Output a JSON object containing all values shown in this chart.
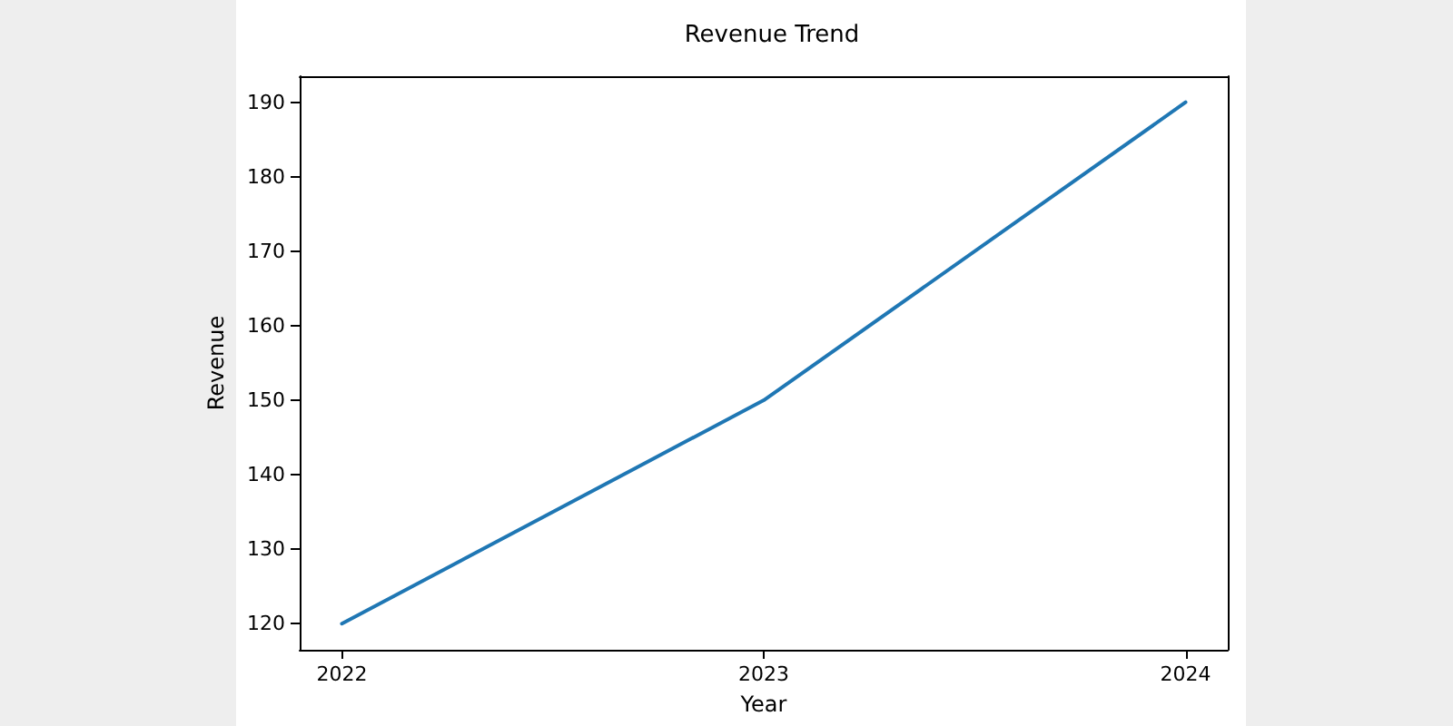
{
  "chart_data": {
    "type": "line",
    "title": "Revenue Trend",
    "xlabel": "Year",
    "ylabel": "Revenue",
    "x": [
      2022,
      2023,
      2024
    ],
    "series": [
      {
        "color": "#1f77b4",
        "values": [
          120,
          150,
          190
        ]
      }
    ],
    "xlim": [
      2021.9,
      2024.1
    ],
    "xticks": [
      2022,
      2023,
      2024
    ],
    "ylim": [
      116.5,
      193.5
    ],
    "yticks": [
      120,
      130,
      140,
      150,
      160,
      170,
      180,
      190
    ],
    "marker": "none",
    "line_style": "solid"
  }
}
